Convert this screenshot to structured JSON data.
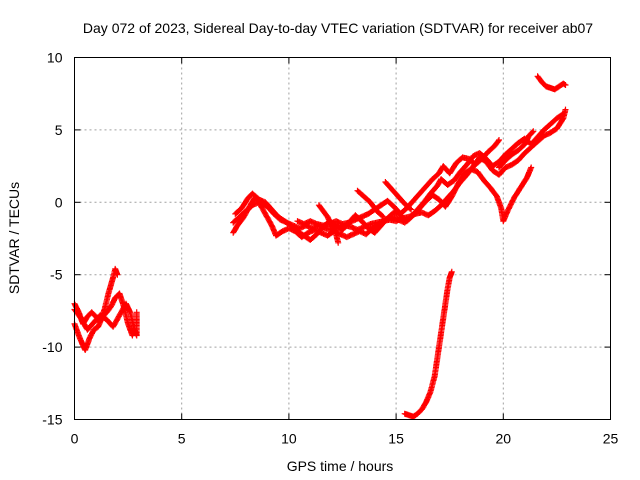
{
  "chart_data": {
    "type": "scatter",
    "title": "Day 072 of 2023, Sidereal Day-to-day VTEC variation (SDTVAR) for receiver ab07",
    "xlabel": "GPS time / hours",
    "ylabel": "SDTVAR / TECUs",
    "xlim": [
      0,
      25
    ],
    "ylim": [
      -15,
      10
    ],
    "xticks": [
      0,
      5,
      10,
      15,
      20,
      25
    ],
    "yticks": [
      -15,
      -10,
      -5,
      0,
      5,
      10
    ],
    "grid": true,
    "marker": "plus",
    "color": "#ff0000",
    "series": [
      {
        "values": [
          [
            0.0,
            -7.0
          ],
          [
            0.2,
            -7.6
          ],
          [
            0.4,
            -8.4
          ],
          [
            0.6,
            -7.9
          ],
          [
            0.8,
            -7.6
          ],
          [
            1.0,
            -7.9
          ],
          [
            1.2,
            -8.2
          ],
          [
            1.4,
            -7.4
          ],
          [
            1.6,
            -6.2
          ],
          [
            1.8,
            -5.2
          ],
          [
            1.9,
            -4.6
          ],
          [
            2.0,
            -5.0
          ]
        ]
      },
      {
        "values": [
          [
            0.0,
            -8.4
          ],
          [
            0.2,
            -9.2
          ],
          [
            0.4,
            -9.9
          ],
          [
            0.5,
            -10.2
          ],
          [
            0.7,
            -9.4
          ],
          [
            0.9,
            -8.8
          ],
          [
            1.1,
            -8.6
          ],
          [
            1.3,
            -7.9
          ],
          [
            1.5,
            -7.6
          ],
          [
            1.7,
            -7.2
          ],
          [
            1.9,
            -6.6
          ],
          [
            2.1,
            -6.3
          ],
          [
            2.3,
            -7.2
          ],
          [
            2.5,
            -8.4
          ],
          [
            2.7,
            -9.2
          ],
          [
            2.8,
            -8.6
          ]
        ]
      },
      {
        "values": [
          [
            0.0,
            -7.4
          ],
          [
            0.3,
            -8.0
          ],
          [
            0.6,
            -8.8
          ],
          [
            0.9,
            -8.3
          ],
          [
            1.2,
            -7.8
          ],
          [
            1.5,
            -8.1
          ],
          [
            1.8,
            -8.6
          ],
          [
            2.1,
            -7.8
          ],
          [
            2.4,
            -7.0
          ],
          [
            2.6,
            -7.6
          ],
          [
            2.8,
            -8.8
          ],
          [
            2.9,
            -9.2
          ],
          [
            2.9,
            -7.6
          ]
        ]
      },
      {
        "values": [
          [
            7.4,
            -2.1
          ],
          [
            7.6,
            -1.6
          ],
          [
            7.9,
            -1.0
          ],
          [
            8.2,
            -0.2
          ],
          [
            8.4,
            0.3
          ],
          [
            8.7,
            0.0
          ],
          [
            9.0,
            -0.3
          ],
          [
            9.3,
            -0.8
          ],
          [
            9.6,
            -1.2
          ],
          [
            9.9,
            -1.4
          ],
          [
            10.2,
            -1.6
          ],
          [
            10.5,
            -1.8
          ],
          [
            10.8,
            -1.6
          ],
          [
            11.1,
            -1.8
          ],
          [
            11.4,
            -1.6
          ],
          [
            11.7,
            -1.8
          ],
          [
            12.0,
            -1.9
          ],
          [
            12.3,
            -1.8
          ],
          [
            12.6,
            -1.6
          ],
          [
            12.9,
            -1.7
          ],
          [
            13.2,
            -1.9
          ],
          [
            13.5,
            -1.7
          ],
          [
            13.8,
            -1.5
          ],
          [
            14.1,
            -1.4
          ],
          [
            14.4,
            -1.3
          ],
          [
            14.7,
            -1.2
          ],
          [
            15.0,
            -1.3
          ],
          [
            15.3,
            -1.1
          ],
          [
            15.6,
            -1.0
          ],
          [
            15.9,
            -0.8
          ],
          [
            16.2,
            -0.7
          ],
          [
            16.5,
            -0.9
          ],
          [
            16.8,
            -0.6
          ],
          [
            17.1,
            -0.2
          ],
          [
            17.4,
            0.3
          ],
          [
            17.7,
            0.8
          ],
          [
            18.0,
            1.4
          ],
          [
            18.3,
            1.9
          ],
          [
            18.6,
            2.5
          ],
          [
            18.9,
            3.1
          ],
          [
            19.2,
            2.8
          ],
          [
            19.5,
            2.2
          ],
          [
            19.8,
            1.9
          ],
          [
            20.1,
            2.4
          ],
          [
            20.4,
            2.6
          ],
          [
            20.7,
            2.9
          ],
          [
            21.0,
            3.4
          ],
          [
            21.3,
            3.8
          ],
          [
            21.6,
            4.2
          ],
          [
            21.9,
            4.6
          ],
          [
            22.2,
            4.8
          ],
          [
            22.5,
            5.1
          ],
          [
            22.8,
            5.8
          ],
          [
            22.9,
            6.4
          ]
        ]
      },
      {
        "values": [
          [
            7.4,
            -1.4
          ],
          [
            7.7,
            -1.0
          ],
          [
            8.0,
            -0.6
          ],
          [
            8.3,
            -0.2
          ],
          [
            8.6,
            0.0
          ],
          [
            8.9,
            -0.8
          ],
          [
            9.2,
            -1.6
          ],
          [
            9.4,
            -2.3
          ],
          [
            9.7,
            -2.0
          ],
          [
            10.0,
            -1.8
          ],
          [
            10.3,
            -2.0
          ],
          [
            10.6,
            -2.4
          ],
          [
            10.9,
            -2.1
          ],
          [
            11.2,
            -1.9
          ],
          [
            11.5,
            -2.1
          ],
          [
            11.8,
            -2.3
          ],
          [
            12.1,
            -2.0
          ],
          [
            12.4,
            -2.2
          ],
          [
            12.7,
            -2.4
          ],
          [
            13.0,
            -2.2
          ],
          [
            13.3,
            -2.0
          ],
          [
            13.6,
            -2.2
          ],
          [
            13.9,
            -1.8
          ],
          [
            14.2,
            -1.5
          ],
          [
            14.5,
            -1.2
          ],
          [
            14.8,
            -1.0
          ],
          [
            15.1,
            -1.2
          ],
          [
            15.4,
            -1.4
          ],
          [
            15.7,
            -1.0
          ],
          [
            16.0,
            -0.5
          ],
          [
            16.3,
            0.0
          ],
          [
            16.6,
            0.6
          ],
          [
            16.9,
            1.1
          ],
          [
            17.1,
            1.6
          ],
          [
            17.4,
            1.2
          ],
          [
            17.7,
            1.5
          ],
          [
            18.0,
            2.1
          ],
          [
            18.3,
            2.6
          ],
          [
            18.6,
            3.2
          ],
          [
            18.9,
            3.4
          ],
          [
            19.2,
            3.0
          ],
          [
            19.5,
            2.5
          ],
          [
            19.8,
            2.8
          ],
          [
            20.1,
            3.3
          ],
          [
            20.4,
            3.7
          ],
          [
            20.7,
            4.1
          ],
          [
            21.0,
            4.4
          ],
          [
            21.3,
            4.0
          ],
          [
            21.6,
            4.5
          ],
          [
            21.9,
            5.0
          ],
          [
            22.2,
            5.4
          ],
          [
            22.5,
            5.8
          ],
          [
            22.8,
            6.1
          ]
        ]
      },
      {
        "values": [
          [
            7.5,
            -0.8
          ],
          [
            7.8,
            -0.4
          ],
          [
            8.1,
            0.3
          ],
          [
            8.3,
            0.6
          ],
          [
            8.6,
            0.2
          ],
          [
            8.9,
            0.0
          ],
          [
            9.2,
            -0.5
          ],
          [
            9.5,
            -1.0
          ],
          [
            9.8,
            -1.3
          ],
          [
            10.1,
            -1.6
          ],
          [
            10.4,
            -2.0
          ],
          [
            10.7,
            -2.3
          ],
          [
            11.0,
            -2.6
          ],
          [
            11.3,
            -2.2
          ],
          [
            11.6,
            -1.7
          ],
          [
            11.9,
            -1.3
          ],
          [
            12.2,
            -1.6
          ],
          [
            12.5,
            -1.9
          ],
          [
            12.8,
            -1.4
          ],
          [
            13.1,
            -0.9
          ],
          [
            13.4,
            -1.3
          ],
          [
            13.7,
            -1.8
          ],
          [
            14.0,
            -2.1
          ],
          [
            14.3,
            -1.6
          ],
          [
            14.6,
            -1.1
          ],
          [
            14.9,
            -0.7
          ],
          [
            15.2,
            -0.9
          ],
          [
            15.5,
            -1.3
          ],
          [
            15.8,
            -0.9
          ],
          [
            16.1,
            -0.4
          ],
          [
            16.4,
            0.1
          ],
          [
            16.7,
            0.5
          ],
          [
            17.0,
            0.2
          ],
          [
            17.3,
            -0.3
          ],
          [
            17.6,
            0.4
          ],
          [
            17.9,
            1.3
          ],
          [
            18.2,
            2.0
          ],
          [
            18.5,
            2.3
          ],
          [
            18.8,
            2.1
          ],
          [
            19.1,
            1.5
          ],
          [
            19.4,
            1.0
          ],
          [
            19.7,
            0.4
          ],
          [
            19.9,
            -0.4
          ],
          [
            20.0,
            -1.3
          ],
          [
            20.2,
            -0.6
          ],
          [
            20.5,
            0.3
          ],
          [
            20.8,
            1.0
          ],
          [
            21.1,
            1.7
          ],
          [
            21.3,
            2.4
          ]
        ]
      },
      {
        "values": [
          [
            10.4,
            -1.3
          ],
          [
            10.7,
            -1.5
          ],
          [
            11.0,
            -1.3
          ],
          [
            11.3,
            -1.5
          ],
          [
            11.6,
            -1.6
          ],
          [
            11.9,
            -1.5
          ],
          [
            12.2,
            -1.3
          ],
          [
            12.5,
            -1.5
          ],
          [
            12.8,
            -1.4
          ],
          [
            13.1,
            -1.2
          ],
          [
            13.4,
            -1.0
          ],
          [
            13.7,
            -0.8
          ],
          [
            14.0,
            -0.5
          ],
          [
            14.3,
            -0.2
          ],
          [
            14.6,
            0.1
          ],
          [
            14.9,
            -0.3
          ],
          [
            15.2,
            -0.8
          ],
          [
            15.5,
            -0.4
          ],
          [
            15.8,
            0.1
          ],
          [
            16.1,
            0.6
          ],
          [
            16.4,
            1.1
          ],
          [
            16.7,
            1.6
          ],
          [
            17.0,
            2.0
          ],
          [
            17.2,
            2.5
          ],
          [
            17.5,
            2.0
          ],
          [
            17.8,
            2.7
          ],
          [
            18.1,
            3.1
          ],
          [
            18.4,
            3.0
          ],
          [
            18.7,
            2.6
          ],
          [
            19.0,
            3.0
          ],
          [
            19.3,
            3.5
          ],
          [
            19.6,
            3.9
          ],
          [
            19.8,
            4.3
          ]
        ]
      },
      {
        "values": [
          [
            12.3,
            -2.8
          ],
          [
            12.2,
            -2.2
          ],
          [
            12.0,
            -1.6
          ],
          [
            11.8,
            -1.0
          ],
          [
            11.6,
            -0.6
          ],
          [
            11.4,
            -0.2
          ]
        ]
      },
      {
        "values": [
          [
            13.2,
            0.8
          ],
          [
            13.5,
            0.4
          ],
          [
            13.8,
            0.0
          ],
          [
            14.1,
            -0.6
          ],
          [
            14.4,
            -1.0
          ]
        ]
      },
      {
        "values": [
          [
            14.5,
            1.4
          ],
          [
            14.8,
            0.9
          ],
          [
            15.1,
            0.4
          ],
          [
            15.4,
            -0.1
          ],
          [
            15.7,
            -0.5
          ]
        ]
      },
      {
        "values": [
          [
            19.8,
            2.4
          ],
          [
            20.1,
            2.9
          ],
          [
            20.4,
            3.3
          ],
          [
            20.7,
            3.6
          ],
          [
            21.0,
            4.0
          ],
          [
            21.2,
            4.6
          ],
          [
            21.4,
            4.9
          ]
        ]
      },
      {
        "values": [
          [
            21.6,
            8.7
          ],
          [
            21.8,
            8.3
          ],
          [
            22.0,
            8.0
          ],
          [
            22.2,
            7.9
          ],
          [
            22.4,
            7.8
          ],
          [
            22.6,
            8.0
          ],
          [
            22.8,
            8.2
          ],
          [
            22.9,
            8.1
          ]
        ]
      },
      {
        "values": [
          [
            15.4,
            -14.6
          ],
          [
            15.6,
            -14.7
          ],
          [
            15.8,
            -14.8
          ],
          [
            16.0,
            -14.6
          ],
          [
            16.2,
            -14.3
          ],
          [
            16.4,
            -13.8
          ],
          [
            16.6,
            -13.1
          ],
          [
            16.8,
            -12.0
          ],
          [
            16.9,
            -11.0
          ],
          [
            17.0,
            -10.0
          ],
          [
            17.1,
            -9.0
          ],
          [
            17.2,
            -8.0
          ],
          [
            17.3,
            -7.0
          ],
          [
            17.4,
            -6.0
          ],
          [
            17.5,
            -5.2
          ],
          [
            17.6,
            -4.8
          ]
        ]
      }
    ]
  }
}
